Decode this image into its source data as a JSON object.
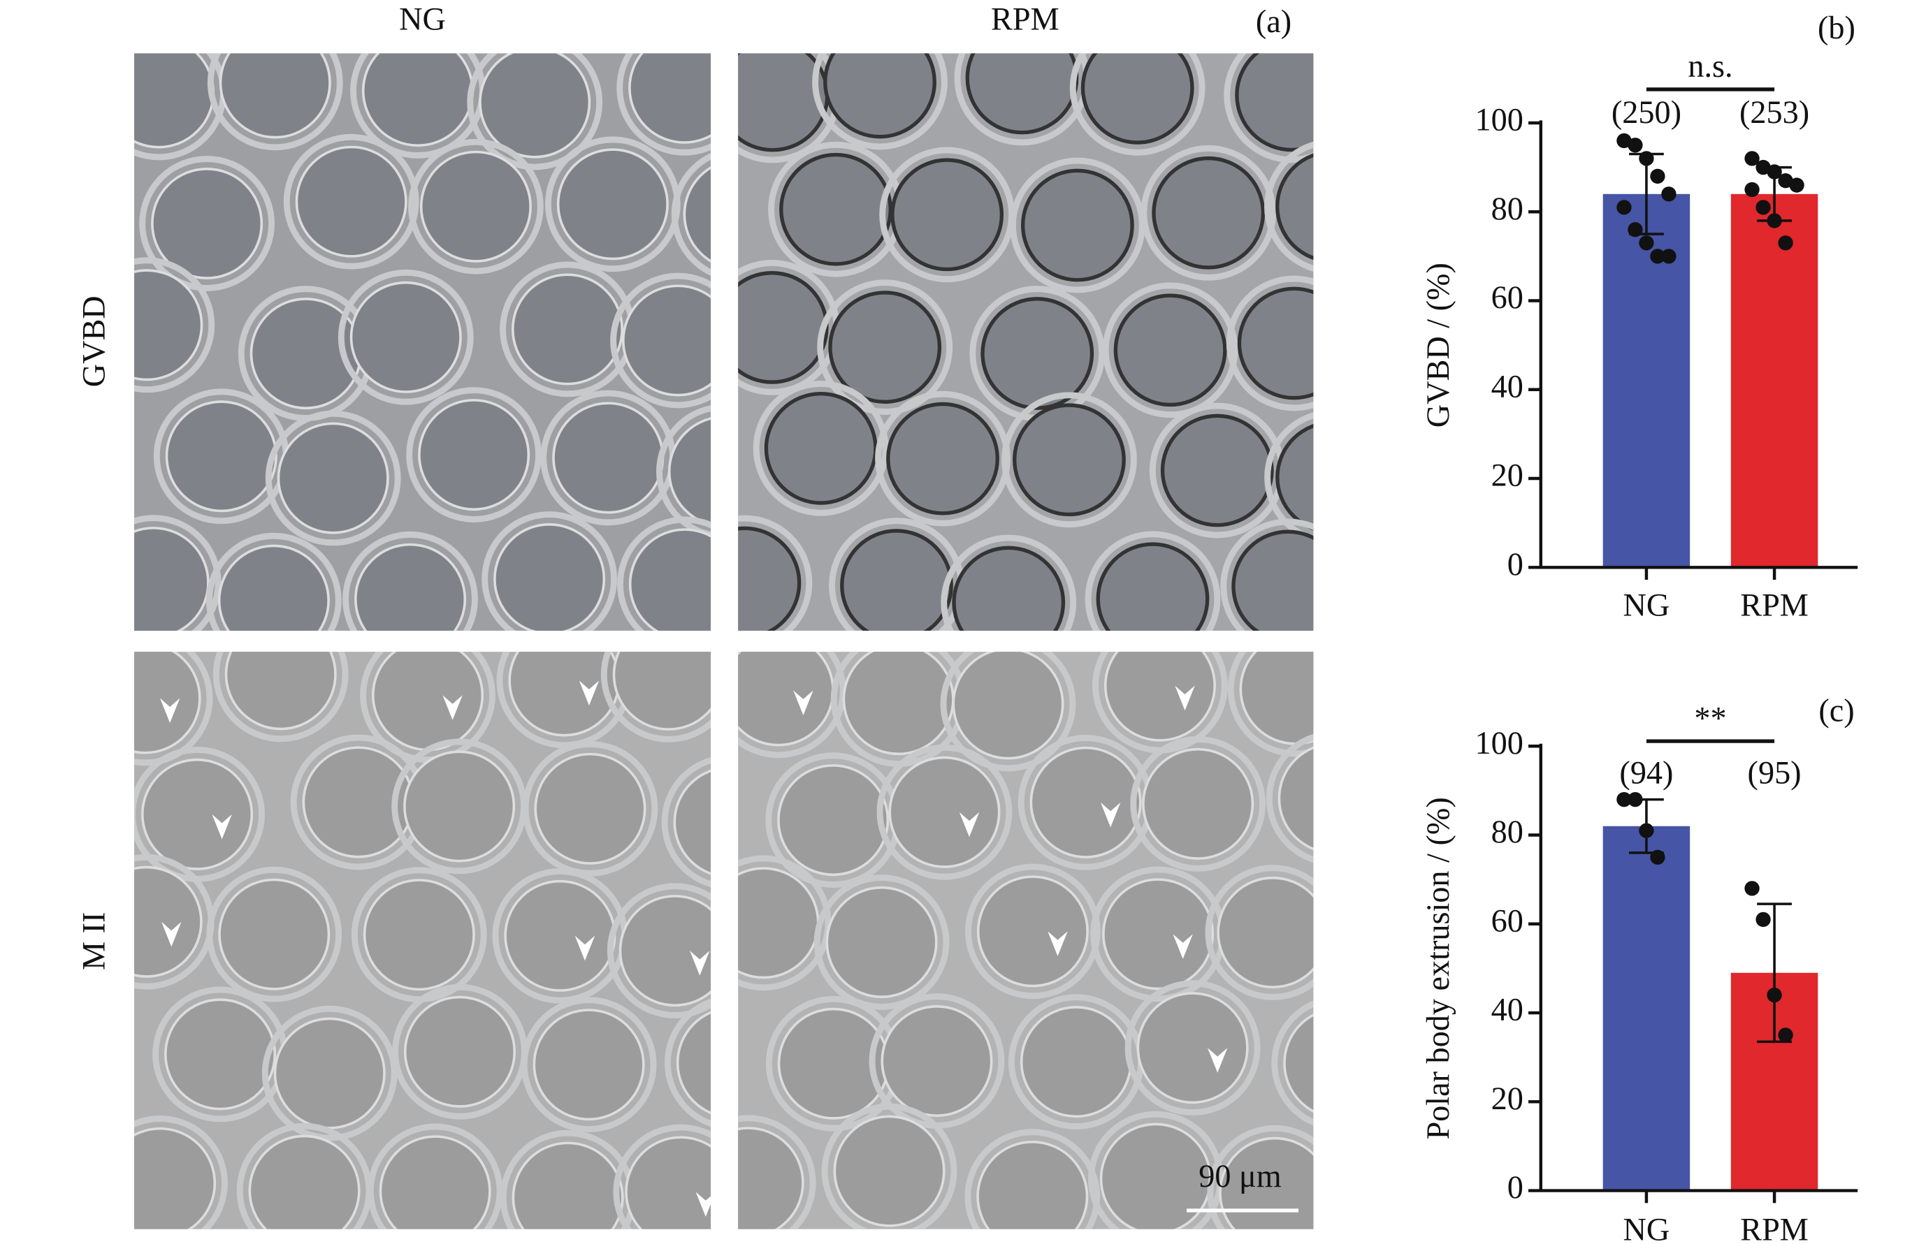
{
  "micrographs": {
    "label": "(a)",
    "columns": [
      "NG",
      "RPM"
    ],
    "rows": [
      "GVBD",
      "M II"
    ],
    "scale_bar": "90 μm"
  },
  "chart_data": [
    {
      "type": "bar",
      "label": "(b)",
      "ylabel": "GVBD / (%)",
      "categories": [
        "NG",
        "RPM"
      ],
      "values": [
        84,
        84
      ],
      "errors": [
        9,
        6
      ],
      "colors": [
        "#4655a5",
        "#e0282d"
      ],
      "points": [
        [
          96,
          95,
          92,
          88,
          84,
          81,
          76,
          73,
          70,
          70
        ],
        [
          92,
          90,
          89,
          87,
          86,
          85,
          81,
          78,
          73
        ]
      ],
      "counts": [
        "(250)",
        "(253)"
      ],
      "significance": "n.s.",
      "ylim": [
        0,
        100
      ],
      "yticks": [
        0,
        20,
        40,
        60,
        80,
        100
      ]
    },
    {
      "type": "bar",
      "label": "(c)",
      "ylabel": "Polar body extrusion / (%)",
      "categories": [
        "NG",
        "RPM"
      ],
      "values": [
        82,
        49
      ],
      "errors": [
        6,
        15.5
      ],
      "colors": [
        "#4655a5",
        "#e0282d"
      ],
      "points": [
        [
          88,
          88,
          81,
          75
        ],
        [
          68,
          61,
          44,
          35
        ]
      ],
      "counts": [
        "(94)",
        "(95)"
      ],
      "significance": "**",
      "ylim": [
        0,
        100
      ],
      "yticks": [
        0,
        20,
        40,
        60,
        80,
        100
      ]
    }
  ]
}
